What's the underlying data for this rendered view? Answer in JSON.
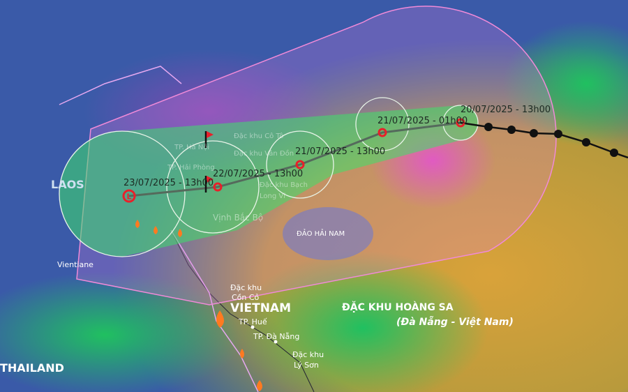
{
  "forecast_points": [
    {
      "label": "20/07/2025 - 13h00",
      "symbol": "storm"
    },
    {
      "label": "21/07/2025 - 01h00",
      "symbol": "storm"
    },
    {
      "label": "21/07/2025 - 13h00",
      "symbol": "storm"
    },
    {
      "label": "22/07/2025 - 13h00",
      "symbol": "storm"
    },
    {
      "label": "23/07/2025 - 13h00",
      "symbol": "low-pressure-L"
    }
  ],
  "low_symbol": "L",
  "places": {
    "laos": "LAOS",
    "vientiane": "Vientiane",
    "thailand": "THAILAND",
    "vietnam": "VIETNAM",
    "ha_noi": "TP. Hà Nội",
    "hai_phong": "TP. Hải Phòng",
    "co_to": "Đặc khu Cô Tô",
    "van_don": "Đặc khu Vân Đồn",
    "bach_long_vi": "Đặc khu Bạch Long Vĩ",
    "vinh_bac_bo": "Vịnh Bắc Bộ",
    "hai_nam": "ĐẢO HẢI NAM",
    "con_co_1": "Đặc khu",
    "con_co_2": "Cồn Cỏ",
    "hue": "TP. Huế",
    "da_nang": "TP. Đà Nẵng",
    "ly_son_1": "Đặc khu",
    "ly_son_2": "Lý Sơn",
    "hoang_sa": "ĐẶC KHU HOÀNG SA",
    "hoang_sa_sub": "(Đà Nẵng - Việt Nam)"
  },
  "colors": {
    "cone_outline": "#f08ad8",
    "inner_cone": "#3ee06a",
    "track_past": "#111111",
    "track_forecast": "#556a5c",
    "storm_symbol": "#e8202a"
  }
}
